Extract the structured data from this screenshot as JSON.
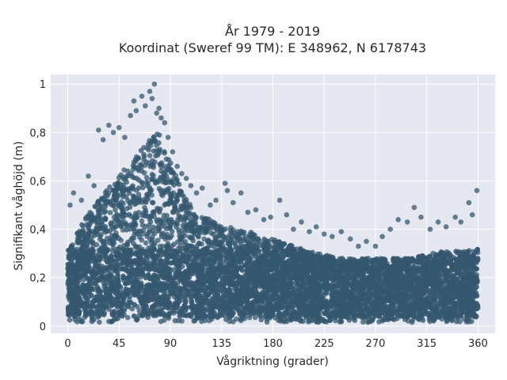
{
  "chart_data": {
    "type": "scatter",
    "title_lines": [
      "År 1979 - 2019",
      "Koordinat (Sweref 99 TM): E 348962, N 6178743"
    ],
    "xlabel": "Vågriktning (grader)",
    "ylabel": "Signifikant våghöjd (m)",
    "xlim": [
      -15,
      375
    ],
    "ylim": [
      -0.03,
      1.04
    ],
    "xticks": [
      0,
      45,
      90,
      135,
      180,
      225,
      270,
      315,
      360
    ],
    "xtick_labels": [
      "0",
      "45",
      "90",
      "135",
      "180",
      "225",
      "270",
      "315",
      "360"
    ],
    "yticks": [
      0,
      0.2,
      0.4,
      0.6,
      0.8,
      1
    ],
    "ytick_labels": [
      "0",
      "0,2",
      "0,4",
      "0,6",
      "0,8",
      "1"
    ],
    "grid": true,
    "legend": "none",
    "marker_color": "#34586f",
    "plot_background": "#e5e8f0",
    "envelope": {
      "direction": [
        0,
        10,
        20,
        30,
        40,
        50,
        60,
        70,
        75,
        80,
        90,
        100,
        110,
        120,
        130,
        140,
        150,
        160,
        170,
        180,
        190,
        200,
        210,
        220,
        230,
        240,
        250,
        260,
        270,
        280,
        290,
        300,
        310,
        320,
        330,
        340,
        350,
        360
      ],
      "height_max": [
        0.32,
        0.4,
        0.48,
        0.55,
        0.6,
        0.65,
        0.7,
        0.76,
        0.8,
        0.8,
        0.68,
        0.56,
        0.48,
        0.45,
        0.43,
        0.41,
        0.4,
        0.39,
        0.37,
        0.36,
        0.34,
        0.33,
        0.31,
        0.3,
        0.29,
        0.28,
        0.28,
        0.28,
        0.28,
        0.28,
        0.28,
        0.28,
        0.29,
        0.3,
        0.31,
        0.31,
        0.31,
        0.32
      ]
    },
    "outliers": [
      {
        "x": 2,
        "y": 0.5
      },
      {
        "x": 5,
        "y": 0.55
      },
      {
        "x": 12,
        "y": 0.52
      },
      {
        "x": 18,
        "y": 0.62
      },
      {
        "x": 23,
        "y": 0.58
      },
      {
        "x": 27,
        "y": 0.81
      },
      {
        "x": 31,
        "y": 0.77
      },
      {
        "x": 36,
        "y": 0.83
      },
      {
        "x": 40,
        "y": 0.8
      },
      {
        "x": 45,
        "y": 0.82
      },
      {
        "x": 50,
        "y": 0.78
      },
      {
        "x": 55,
        "y": 0.87
      },
      {
        "x": 58,
        "y": 0.93
      },
      {
        "x": 60,
        "y": 0.89
      },
      {
        "x": 65,
        "y": 0.95
      },
      {
        "x": 68,
        "y": 0.91
      },
      {
        "x": 72,
        "y": 0.97
      },
      {
        "x": 74,
        "y": 0.94
      },
      {
        "x": 76,
        "y": 1.0
      },
      {
        "x": 78,
        "y": 0.88
      },
      {
        "x": 80,
        "y": 0.9
      },
      {
        "x": 82,
        "y": 0.86
      },
      {
        "x": 85,
        "y": 0.84
      },
      {
        "x": 88,
        "y": 0.78
      },
      {
        "x": 92,
        "y": 0.72
      },
      {
        "x": 96,
        "y": 0.66
      },
      {
        "x": 100,
        "y": 0.63
      },
      {
        "x": 104,
        "y": 0.61
      },
      {
        "x": 108,
        "y": 0.58
      },
      {
        "x": 113,
        "y": 0.55
      },
      {
        "x": 118,
        "y": 0.57
      },
      {
        "x": 125,
        "y": 0.5
      },
      {
        "x": 130,
        "y": 0.52
      },
      {
        "x": 138,
        "y": 0.59
      },
      {
        "x": 140,
        "y": 0.56
      },
      {
        "x": 145,
        "y": 0.51
      },
      {
        "x": 152,
        "y": 0.55
      },
      {
        "x": 158,
        "y": 0.47
      },
      {
        "x": 165,
        "y": 0.48
      },
      {
        "x": 172,
        "y": 0.44
      },
      {
        "x": 178,
        "y": 0.45
      },
      {
        "x": 186,
        "y": 0.52
      },
      {
        "x": 192,
        "y": 0.46
      },
      {
        "x": 198,
        "y": 0.4
      },
      {
        "x": 205,
        "y": 0.43
      },
      {
        "x": 212,
        "y": 0.39
      },
      {
        "x": 218,
        "y": 0.41
      },
      {
        "x": 225,
        "y": 0.38
      },
      {
        "x": 232,
        "y": 0.37
      },
      {
        "x": 240,
        "y": 0.39
      },
      {
        "x": 248,
        "y": 0.36
      },
      {
        "x": 255,
        "y": 0.33
      },
      {
        "x": 262,
        "y": 0.35
      },
      {
        "x": 270,
        "y": 0.33
      },
      {
        "x": 276,
        "y": 0.37
      },
      {
        "x": 283,
        "y": 0.4
      },
      {
        "x": 290,
        "y": 0.44
      },
      {
        "x": 298,
        "y": 0.43
      },
      {
        "x": 304,
        "y": 0.49
      },
      {
        "x": 310,
        "y": 0.45
      },
      {
        "x": 318,
        "y": 0.4
      },
      {
        "x": 325,
        "y": 0.43
      },
      {
        "x": 332,
        "y": 0.41
      },
      {
        "x": 340,
        "y": 0.45
      },
      {
        "x": 345,
        "y": 0.43
      },
      {
        "x": 352,
        "y": 0.51
      },
      {
        "x": 355,
        "y": 0.46
      },
      {
        "x": 359,
        "y": 0.56
      }
    ]
  }
}
